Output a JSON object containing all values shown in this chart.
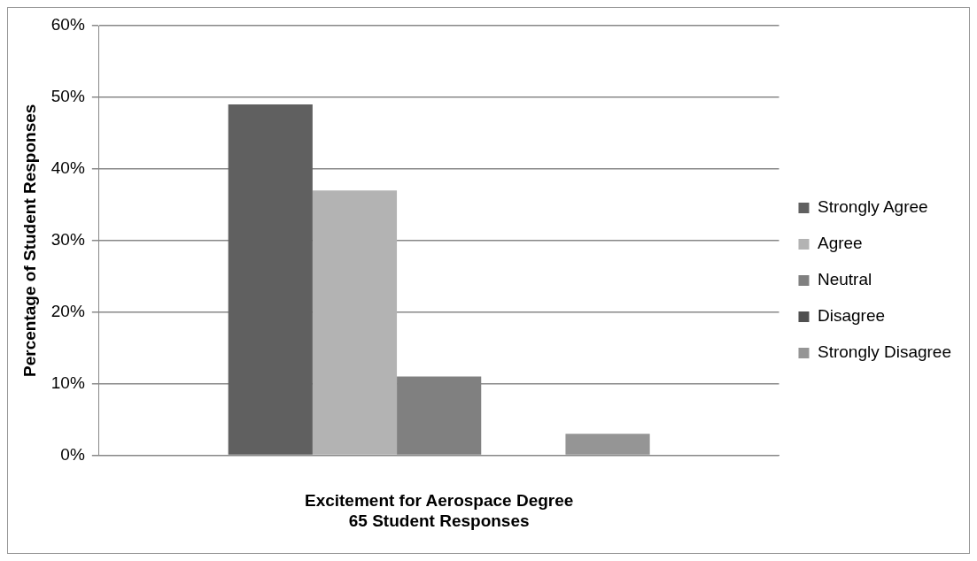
{
  "chart_data": {
    "type": "bar",
    "xlabel": "Excitement for Aerospace Degree\n65 Student Responses",
    "ylabel": "Percentage of Student Responses",
    "categories": [
      null
    ],
    "series": [
      {
        "name": "Strongly Agree",
        "color": "#606060",
        "values": [
          49
        ]
      },
      {
        "name": "Agree",
        "color": "#b3b3b3",
        "values": [
          37
        ]
      },
      {
        "name": "Neutral",
        "color": "#808080",
        "values": [
          11
        ]
      },
      {
        "name": "Disagree",
        "color": "#505050",
        "values": [
          0
        ]
      },
      {
        "name": "Strongly Disagree",
        "color": "#959595",
        "values": [
          3
        ]
      }
    ],
    "ylim": [
      0,
      60
    ],
    "yticks": [
      {
        "value": 0,
        "label": "0%"
      },
      {
        "value": 10,
        "label": "10%"
      },
      {
        "value": 20,
        "label": "20%"
      },
      {
        "value": 30,
        "label": "30%"
      },
      {
        "value": 40,
        "label": "40%"
      },
      {
        "value": 50,
        "label": "50%"
      },
      {
        "value": 60,
        "label": "60%"
      }
    ],
    "grid": "y",
    "legend": "right"
  }
}
